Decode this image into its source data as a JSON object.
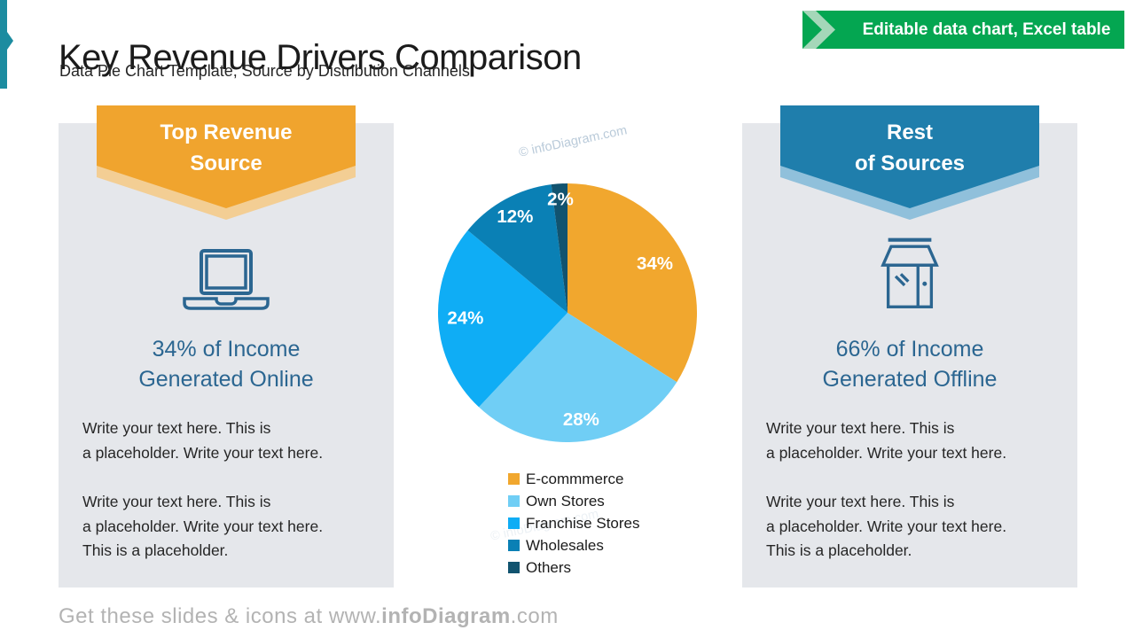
{
  "header": {
    "title": "Key Revenue Drivers Comparison",
    "subtitle": "Data Pie Chart Template, Source by Distribution Channels",
    "badge_label": "Editable data chart, Excel table"
  },
  "left_panel": {
    "banner_title": "Top Revenue\nSource",
    "icon": "laptop-icon",
    "heading": "34% of Income\nGenerated Online",
    "paragraph1": "Write your text here. This is\na placeholder. Write your text here.",
    "paragraph2": "Write your text here. This is\na placeholder. Write your text here.\nThis is a placeholder."
  },
  "right_panel": {
    "banner_title": "Rest\nof Sources",
    "icon": "store-icon",
    "heading": "66% of Income\nGenerated Offline",
    "paragraph1": "Write your text here. This is\na placeholder. Write your text here.",
    "paragraph2": "Write your text here. This is\na placeholder. Write your text here.\nThis is a placeholder."
  },
  "chart_data": {
    "type": "pie",
    "labels": [
      "E-commmerce",
      "Own Stores",
      "Franchise Stores",
      "Wholesales",
      "Others"
    ],
    "values": [
      34,
      28,
      24,
      12,
      2
    ],
    "data_labels": [
      "34%",
      "28%",
      "24%",
      "12%",
      "2%"
    ],
    "colors": [
      "#F1A72E",
      "#70CEF5",
      "#0FADF5",
      "#0A80B5",
      "#11536F"
    ],
    "start_angle_deg": 0,
    "direction": "clockwise",
    "legend_position": "bottom-left"
  },
  "watermark": "© infoDiagram.com",
  "footer": {
    "prefix": "Get these slides & icons at ",
    "url_www": "www.",
    "url_brand": "infoDiagram",
    "url_tld": ".com"
  },
  "theme": {
    "accent_teal": "#1C8CA0",
    "badge_green": "#04A651",
    "badge_chevron_green": "#A5D7B9",
    "panel_bg": "#E5E7EB",
    "orange": "#F0A42E",
    "orange_shadow": "#F3CE94",
    "blue": "#1F7EAC",
    "blue_shadow": "#90C0DB",
    "heading_blue": "#2B6691",
    "icon_blue": "#2B6691",
    "footer_gray": "#B3B3B3",
    "watermark": "#A8BDD0"
  }
}
